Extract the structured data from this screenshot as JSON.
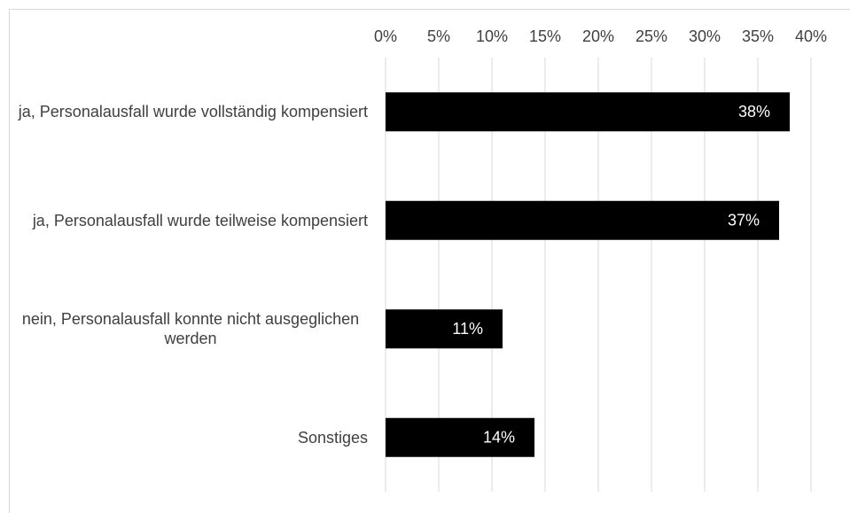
{
  "chart_data": {
    "type": "bar",
    "orientation": "horizontal",
    "categories": [
      "ja, Personalausfall wurde vollständig kompensiert",
      "ja, Personalausfall wurde teilweise kompensiert",
      "nein, Personalausfall konnte nicht ausgeglichen werden",
      "Sonstiges"
    ],
    "values": [
      38,
      37,
      11,
      14
    ],
    "value_labels": [
      "38%",
      "37%",
      "11%",
      "14%"
    ],
    "color": "#000000",
    "xlim": [
      0,
      40
    ],
    "xticks": [
      {
        "value": 0,
        "label": "0%"
      },
      {
        "value": 5,
        "label": "5%"
      },
      {
        "value": 10,
        "label": "10%"
      },
      {
        "value": 15,
        "label": "15%"
      },
      {
        "value": 20,
        "label": "20%"
      },
      {
        "value": 25,
        "label": "25%"
      },
      {
        "value": 30,
        "label": "30%"
      },
      {
        "value": 35,
        "label": "35%"
      },
      {
        "value": 40,
        "label": "40%"
      }
    ],
    "grid": true
  }
}
